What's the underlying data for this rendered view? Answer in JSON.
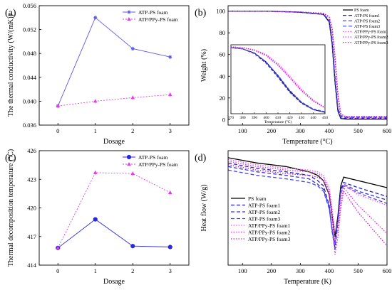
{
  "chart_data": [
    {
      "panel": "(a)",
      "type": "line",
      "xlabel": "Dosage",
      "ylabel": "The thermal conductivity (W/(mK))",
      "xlim": [
        -0.5,
        3.5
      ],
      "ylim": [
        0.036,
        0.056
      ],
      "xticks": [
        "0",
        "1",
        "2",
        "3"
      ],
      "yticks": [
        "0.036",
        "0.040",
        "0.044",
        "0.048",
        "0.052",
        "0.056"
      ],
      "legend": "top-right",
      "series": [
        {
          "name": "ATP-PS foam",
          "x": [
            0,
            1,
            2,
            3
          ],
          "y": [
            0.0392,
            0.054,
            0.0488,
            0.0474
          ],
          "color": "#5a5ae6",
          "marker": "star",
          "dash": ""
        },
        {
          "name": "ATP/PPy-PS foam",
          "x": [
            0,
            1,
            2,
            3
          ],
          "y": [
            0.0392,
            0.04,
            0.0406,
            0.0411
          ],
          "color": "#e040e0",
          "marker": "triangle",
          "dash": "2,2"
        }
      ]
    },
    {
      "panel": "(b)",
      "type": "line",
      "xlabel": "Temperature (°C)",
      "ylabel": "Weight (%)",
      "xlim": [
        50,
        600
      ],
      "ylim": [
        -5,
        105
      ],
      "xticks": [
        "100",
        "200",
        "300",
        "400",
        "500",
        "600"
      ],
      "yticks": [
        "0",
        "20",
        "40",
        "60",
        "80",
        "100"
      ],
      "legend": "top-right",
      "series": [
        {
          "name": "PS foam",
          "x": [
            50,
            200,
            300,
            380,
            400,
            410,
            420,
            430,
            440,
            460,
            600
          ],
          "y": [
            100,
            99.8,
            99,
            97,
            90,
            70,
            35,
            8,
            1,
            0.5,
            0.5
          ],
          "color": "#000000",
          "dash": ""
        },
        {
          "name": "ATP-PS foam1",
          "x": [
            50,
            200,
            300,
            380,
            400,
            410,
            420,
            430,
            440,
            460,
            600
          ],
          "y": [
            100,
            99.8,
            99,
            97,
            90,
            70,
            35,
            8,
            1.5,
            1.2,
            1.2
          ],
          "color": "#1e1ec8",
          "dash": "5,3"
        },
        {
          "name": "ATP-PS foam2",
          "x": [
            50,
            200,
            300,
            380,
            400,
            410,
            420,
            430,
            440,
            460,
            600
          ],
          "y": [
            100,
            99.8,
            99,
            97,
            91,
            72,
            38,
            10,
            2.5,
            2,
            2
          ],
          "color": "#3232dc",
          "dash": "5,3"
        },
        {
          "name": "ATP-PS foam3",
          "x": [
            50,
            200,
            300,
            380,
            400,
            410,
            420,
            430,
            440,
            460,
            600
          ],
          "y": [
            100,
            99.8,
            99,
            97,
            92,
            74,
            40,
            11,
            3,
            2.5,
            2.5
          ],
          "color": "#4646f0",
          "dash": "5,3"
        },
        {
          "name": "ATP/PPy-PS foam1",
          "x": [
            50,
            200,
            300,
            380,
            400,
            410,
            420,
            430,
            440,
            460,
            600
          ],
          "y": [
            100,
            99.8,
            99.2,
            98,
            95,
            85,
            60,
            25,
            6,
            1.5,
            1.5
          ],
          "color": "#ff50ff",
          "dash": "1.5,2"
        },
        {
          "name": "ATP/PPy-PS foam2",
          "x": [
            50,
            200,
            300,
            380,
            400,
            410,
            420,
            430,
            440,
            460,
            600
          ],
          "y": [
            100,
            99.8,
            99.2,
            98,
            95,
            84,
            58,
            23,
            5,
            2,
            2
          ],
          "color": "#e632e6",
          "dash": "1.5,2"
        },
        {
          "name": "ATP/PPy-PS foam3",
          "x": [
            50,
            200,
            300,
            380,
            400,
            410,
            420,
            430,
            440,
            460,
            600
          ],
          "y": [
            100,
            99.8,
            99.2,
            98,
            94,
            82,
            55,
            21,
            4,
            3,
            3
          ],
          "color": "#c81ec8",
          "dash": "1.5,2"
        }
      ],
      "inset": {
        "xlim": [
          370,
          450
        ],
        "ylim": [
          0,
          100
        ],
        "xticks": [
          "370",
          "380",
          "390",
          "400",
          "410",
          "420",
          "430",
          "440",
          "450"
        ],
        "series": [
          {
            "name": "PS foam",
            "x": [
              370,
              380,
              390,
              400,
              410,
              420,
              430,
              440,
              450
            ],
            "y": [
              96,
              94,
              88,
              75,
              55,
              33,
              16,
              6,
              2
            ],
            "color": "#000000",
            "dash": ""
          },
          {
            "name": "ATP-PS foam1",
            "x": [
              370,
              380,
              390,
              400,
              410,
              420,
              430,
              440,
              450
            ],
            "y": [
              96,
              94,
              87,
              73,
              53,
              31,
              15,
              6,
              2
            ],
            "color": "#1e1ec8",
            "dash": "4,2"
          },
          {
            "name": "ATP-PS foam2",
            "x": [
              370,
              380,
              390,
              400,
              410,
              420,
              430,
              440,
              450
            ],
            "y": [
              96,
              94,
              88,
              74,
              54,
              32,
              16,
              6,
              2
            ],
            "color": "#3232dc",
            "dash": "4,2"
          },
          {
            "name": "ATP-PS foam3",
            "x": [
              370,
              380,
              390,
              400,
              410,
              420,
              430,
              440,
              450
            ],
            "y": [
              96,
              94,
              88,
              75,
              56,
              34,
              17,
              7,
              3
            ],
            "color": "#4646f0",
            "dash": "4,2"
          },
          {
            "name": "ATP/PPy-PS foam1",
            "x": [
              370,
              380,
              390,
              400,
              410,
              420,
              430,
              440,
              450
            ],
            "y": [
              97,
              96,
              93,
              86,
              73,
              55,
              36,
              20,
              9
            ],
            "color": "#ff50ff",
            "dash": "1.5,1.5"
          },
          {
            "name": "ATP/PPy-PS foam2",
            "x": [
              370,
              380,
              390,
              400,
              410,
              420,
              430,
              440,
              450
            ],
            "y": [
              97,
              96,
              92,
              84,
              70,
              52,
              33,
              18,
              8
            ],
            "color": "#e632e6",
            "dash": "1.5,1.5"
          },
          {
            "name": "ATP/PPy-PS foam3",
            "x": [
              370,
              380,
              390,
              400,
              410,
              420,
              430,
              440,
              450
            ],
            "y": [
              97,
              96,
              92,
              85,
              71,
              53,
              34,
              19,
              9
            ],
            "color": "#c81ec8",
            "dash": "1.5,1.5"
          }
        ]
      }
    },
    {
      "panel": "(c)",
      "type": "line",
      "xlabel": "Dosage",
      "ylabel": "Thermal decomposition temperature (°C)",
      "xlim": [
        -0.5,
        3.5
      ],
      "ylim": [
        414,
        426
      ],
      "xticks": [
        "0",
        "1",
        "2",
        "3"
      ],
      "yticks": [
        "414",
        "417",
        "420",
        "423",
        "426"
      ],
      "legend": "top-right",
      "series": [
        {
          "name": "ATP-PS foam",
          "x": [
            0,
            1,
            2,
            3
          ],
          "y": [
            415.8,
            418.8,
            416.0,
            415.9
          ],
          "color": "#2828dc",
          "marker": "circle",
          "dash": ""
        },
        {
          "name": "ATP/PPy-PS foam",
          "x": [
            0,
            1,
            2,
            3
          ],
          "y": [
            415.8,
            423.7,
            423.6,
            421.6
          ],
          "color": "#e040e0",
          "marker": "triangle",
          "dash": "2,2"
        }
      ]
    },
    {
      "panel": "(d)",
      "type": "line",
      "xlabel": "Temperature (K)",
      "ylabel": "Heat flow (W/g)",
      "xlim": [
        50,
        600
      ],
      "ylim": [
        -7,
        -0.5
      ],
      "xticks": [
        "100",
        "200",
        "300",
        "400",
        "500",
        "600"
      ],
      "legend": "bottom-left",
      "series": [
        {
          "name": "PS foam",
          "x": [
            50,
            150,
            250,
            330,
            360,
            380,
            400,
            410,
            420,
            430,
            440,
            450,
            500,
            600
          ],
          "y": [
            -0.9,
            -1.2,
            -1.4,
            -1.7,
            -1.9,
            -2.2,
            -3.0,
            -4.2,
            -5.4,
            -4.2,
            -2.5,
            -2.0,
            -2.2,
            -2.6
          ],
          "color": "#000000",
          "dash": ""
        },
        {
          "name": "ATP-PS foam1",
          "x": [
            50,
            150,
            250,
            330,
            360,
            380,
            400,
            410,
            420,
            430,
            440,
            450,
            500,
            600
          ],
          "y": [
            -1.2,
            -1.5,
            -1.7,
            -1.9,
            -2.2,
            -2.5,
            -3.6,
            -5.0,
            -6.0,
            -4.5,
            -2.7,
            -2.3,
            -2.6,
            -3.1
          ],
          "color": "#1e1ec8",
          "dash": "5,3"
        },
        {
          "name": "ATP-PS foam2",
          "x": [
            50,
            150,
            250,
            330,
            360,
            380,
            400,
            410,
            420,
            430,
            440,
            450,
            500,
            600
          ],
          "y": [
            -1.4,
            -1.7,
            -1.9,
            -2.1,
            -2.4,
            -2.7,
            -3.7,
            -5.1,
            -6.1,
            -4.6,
            -2.8,
            -2.4,
            -2.8,
            -3.3
          ],
          "color": "#3232dc",
          "dash": "5,3"
        },
        {
          "name": "ATP-PS foam3",
          "x": [
            50,
            150,
            250,
            330,
            360,
            380,
            400,
            410,
            420,
            430,
            440,
            450,
            500,
            600
          ],
          "y": [
            -1.6,
            -1.9,
            -2.1,
            -2.3,
            -2.5,
            -2.8,
            -3.8,
            -5.0,
            -5.8,
            -4.4,
            -2.9,
            -2.5,
            -2.9,
            -3.5
          ],
          "color": "#4646f0",
          "dash": "5,3"
        },
        {
          "name": "ATP/PPy-PS foam1",
          "x": [
            50,
            150,
            250,
            330,
            360,
            380,
            400,
            410,
            420,
            430,
            440,
            450,
            500,
            600
          ],
          "y": [
            -1.0,
            -1.3,
            -1.5,
            -1.6,
            -1.7,
            -1.9,
            -2.6,
            -3.8,
            -5.1,
            -4.6,
            -3.2,
            -2.4,
            -3.0,
            -3.6
          ],
          "color": "#ff50ff",
          "dash": "1.5,2"
        },
        {
          "name": "ATP/PPy-PS foam2",
          "x": [
            50,
            150,
            250,
            330,
            360,
            380,
            400,
            410,
            420,
            430,
            440,
            450,
            500,
            600
          ],
          "y": [
            -1.1,
            -1.4,
            -1.6,
            -1.7,
            -1.8,
            -2.0,
            -2.8,
            -4.2,
            -5.6,
            -5.0,
            -3.5,
            -2.6,
            -3.6,
            -5.2
          ],
          "color": "#e632e6",
          "dash": "1.5,2"
        },
        {
          "name": "ATP/PPy-PS foam3",
          "x": [
            50,
            150,
            250,
            330,
            360,
            380,
            400,
            410,
            420,
            430,
            440,
            450,
            500,
            600
          ],
          "y": [
            -1.3,
            -1.6,
            -1.8,
            -1.9,
            -2.0,
            -2.2,
            -3.0,
            -4.4,
            -6.4,
            -5.4,
            -3.8,
            -2.8,
            -4.0,
            -5.9
          ],
          "color": "#c81ec8",
          "dash": "1.5,2"
        }
      ]
    }
  ]
}
